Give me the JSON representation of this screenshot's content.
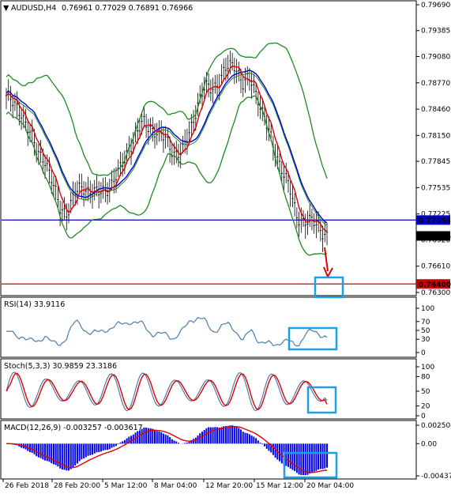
{
  "header": {
    "symbol_timeframe": "AUDUSD,H4",
    "ohlc": "0.76961 0.77029 0.76891 0.76966",
    "arrow": "▼"
  },
  "price_axis": {
    "ticks": [
      "0.79690",
      "0.79385",
      "0.79080",
      "0.78770",
      "0.78460",
      "0.78150",
      "0.77845",
      "0.77535",
      "0.77225",
      "0.76920",
      "0.76610",
      "0.76300"
    ],
    "flags": [
      {
        "label": "0.77153",
        "value": 0.77153,
        "color": "#0000cc"
      },
      {
        "label": "0.76966",
        "value": 0.76966,
        "color": "#000000"
      },
      {
        "label": "0.76400",
        "value": 0.764,
        "color": "#cc0000"
      }
    ]
  },
  "rsi": {
    "label": "RSI(14) 33.9116",
    "ticks": [
      "100",
      "70",
      "50",
      "30",
      "0"
    ]
  },
  "stoch": {
    "label": "Stoch(5,3,3) 30.9859 23.3186",
    "ticks": [
      "100",
      "80",
      "50",
      "20",
      "0"
    ]
  },
  "macd": {
    "label": "MACD(12,26,9) -0.003257 -0.003617",
    "ticks": [
      "0.002504",
      "0.00",
      "-0.00437"
    ]
  },
  "time_axis": [
    "26 Feb 2018",
    "28 Feb 20:00",
    "5 Mar 12:00",
    "8 Mar 04:00",
    "12 Mar 20:00",
    "15 Mar 12:00",
    "20 Mar 04:00"
  ],
  "colors": {
    "support_line": "#cc0000",
    "resistance_line": "#0000cc",
    "bollinger": "#1f8a1f",
    "fast_ma": "#e00000",
    "slow_ma": "#0000dd",
    "highlight_box": "#19a0e6",
    "rsi_line": "#4a7fb0",
    "stoch_main": "#4a7fb0",
    "stoch_signal": "#e00000",
    "macd_hist": "#0000ee",
    "macd_signal": "#e00000"
  },
  "chart_data": {
    "type": "line",
    "title": "AUDUSD,H4",
    "price_range": [
      0.763,
      0.7969
    ],
    "support_level": 0.764,
    "resistance_level": 0.77153,
    "last_price": 0.76966,
    "close_path": [
      0.7862,
      0.785,
      0.7843,
      0.782,
      0.7795,
      0.779,
      0.776,
      0.773,
      0.7725,
      0.7745,
      0.7755,
      0.775,
      0.7745,
      0.7752,
      0.776,
      0.7775,
      0.78,
      0.7815,
      0.783,
      0.7825,
      0.7815,
      0.781,
      0.7795,
      0.7792,
      0.782,
      0.785,
      0.787,
      0.7872,
      0.788,
      0.7895,
      0.79,
      0.7875,
      0.788,
      0.786,
      0.783,
      0.78,
      0.778,
      0.7755,
      0.772,
      0.7715,
      0.7712,
      0.7708,
      0.7697
    ],
    "rsi_value": 33.9116,
    "stoch_main": 30.9859,
    "stoch_signal": 23.3186,
    "macd_main": -0.003257,
    "macd_signal": -0.003617
  }
}
